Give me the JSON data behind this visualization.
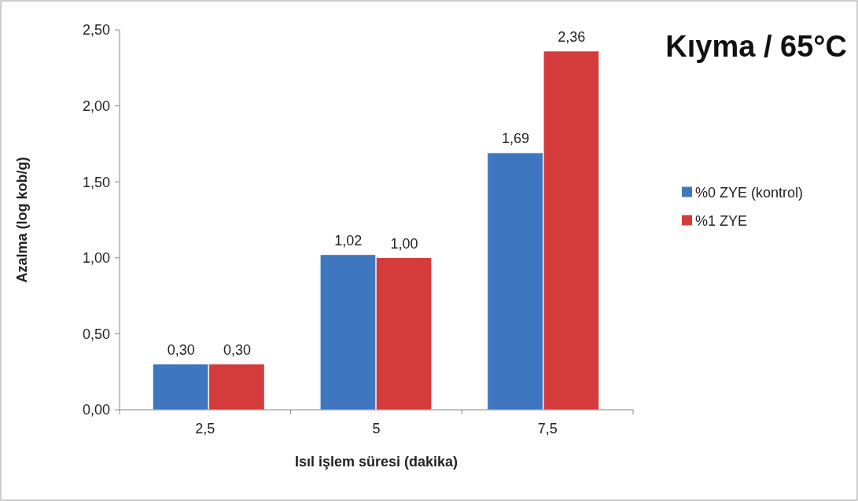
{
  "chart_data": {
    "type": "bar",
    "title": "Kıyma / 65°C",
    "xlabel": "Isıl işlem süresi (dakika)",
    "ylabel": "Azalma (log kob/g)",
    "categories": [
      "2,5",
      "5",
      "7,5"
    ],
    "series": [
      {
        "name": "%0 ZYE (kontrol)",
        "color": "#3f76c0",
        "values": [
          0.3,
          1.02,
          1.69
        ],
        "value_labels": [
          "0,30",
          "1,02",
          "1,69"
        ]
      },
      {
        "name": "%1 ZYE",
        "color": "#d43b3b",
        "values": [
          0.3,
          1.0,
          2.36
        ],
        "value_labels": [
          "0,30",
          "1,00",
          "2,36"
        ]
      }
    ],
    "ylim": [
      0,
      2.5
    ],
    "yticks": [
      {
        "value": 0,
        "label": "0,00"
      },
      {
        "value": 0.5,
        "label": "0,50"
      },
      {
        "value": 1,
        "label": "1,00"
      },
      {
        "value": 1.5,
        "label": "1,50"
      },
      {
        "value": 2,
        "label": "2,00"
      },
      {
        "value": 2.5,
        "label": "2,50"
      }
    ],
    "grid": false,
    "legend": "right"
  }
}
